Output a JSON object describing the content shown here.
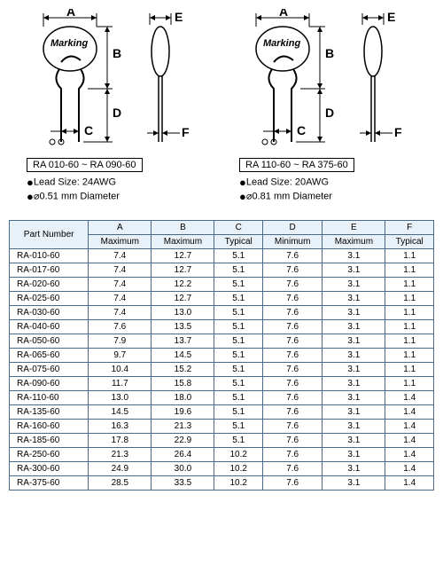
{
  "diagram": {
    "labels": {
      "A": "A",
      "B": "B",
      "C": "C",
      "D": "D",
      "E": "E",
      "F": "F",
      "marking": "Marking"
    }
  },
  "specs": {
    "left": {
      "range": "RA 010-60 ~ RA 090-60",
      "lead": "Lead Size: 24AWG",
      "dia": "0.51 mm Diameter"
    },
    "right": {
      "range": "RA 110-60 ~ RA 375-60",
      "lead": "Lead Size: 20AWG",
      "dia": "0.81 mm Diameter"
    }
  },
  "table": {
    "headers": {
      "part": "Part Number",
      "cols": [
        "A",
        "B",
        "C",
        "D",
        "E",
        "F"
      ],
      "sub": [
        "Maximum",
        "Maximum",
        "Typical",
        "Minimum",
        "Maximum",
        "Typical"
      ]
    },
    "rows": [
      {
        "pn": "RA-010-60",
        "v": [
          "7.4",
          "12.7",
          "5.1",
          "7.6",
          "3.1",
          "1.1"
        ]
      },
      {
        "pn": "RA-017-60",
        "v": [
          "7.4",
          "12.7",
          "5.1",
          "7.6",
          "3.1",
          "1.1"
        ]
      },
      {
        "pn": "RA-020-60",
        "v": [
          "7.4",
          "12.2",
          "5.1",
          "7.6",
          "3.1",
          "1.1"
        ]
      },
      {
        "pn": "RA-025-60",
        "v": [
          "7.4",
          "12.7",
          "5.1",
          "7.6",
          "3.1",
          "1.1"
        ]
      },
      {
        "pn": "RA-030-60",
        "v": [
          "7.4",
          "13.0",
          "5.1",
          "7.6",
          "3.1",
          "1.1"
        ]
      },
      {
        "pn": "RA-040-60",
        "v": [
          "7.6",
          "13.5",
          "5.1",
          "7.6",
          "3.1",
          "1.1"
        ]
      },
      {
        "pn": "RA-050-60",
        "v": [
          "7.9",
          "13.7",
          "5.1",
          "7.6",
          "3.1",
          "1.1"
        ]
      },
      {
        "pn": "RA-065-60",
        "v": [
          "9.7",
          "14.5",
          "5.1",
          "7.6",
          "3.1",
          "1.1"
        ]
      },
      {
        "pn": "RA-075-60",
        "v": [
          "10.4",
          "15.2",
          "5.1",
          "7.6",
          "3.1",
          "1.1"
        ]
      },
      {
        "pn": "RA-090-60",
        "v": [
          "11.7",
          "15.8",
          "5.1",
          "7.6",
          "3.1",
          "1.1"
        ]
      },
      {
        "pn": "RA-110-60",
        "v": [
          "13.0",
          "18.0",
          "5.1",
          "7.6",
          "3.1",
          "1.4"
        ]
      },
      {
        "pn": "RA-135-60",
        "v": [
          "14.5",
          "19.6",
          "5.1",
          "7.6",
          "3.1",
          "1.4"
        ]
      },
      {
        "pn": "RA-160-60",
        "v": [
          "16.3",
          "21.3",
          "5.1",
          "7.6",
          "3.1",
          "1.4"
        ]
      },
      {
        "pn": "RA-185-60",
        "v": [
          "17.8",
          "22.9",
          "5.1",
          "7.6",
          "3.1",
          "1.4"
        ]
      },
      {
        "pn": "RA-250-60",
        "v": [
          "21.3",
          "26.4",
          "10.2",
          "7.6",
          "3.1",
          "1.4"
        ]
      },
      {
        "pn": "RA-300-60",
        "v": [
          "24.9",
          "30.0",
          "10.2",
          "7.6",
          "3.1",
          "1.4"
        ]
      },
      {
        "pn": "RA-375-60",
        "v": [
          "28.5",
          "33.5",
          "10.2",
          "7.6",
          "3.1",
          "1.4"
        ]
      }
    ]
  }
}
